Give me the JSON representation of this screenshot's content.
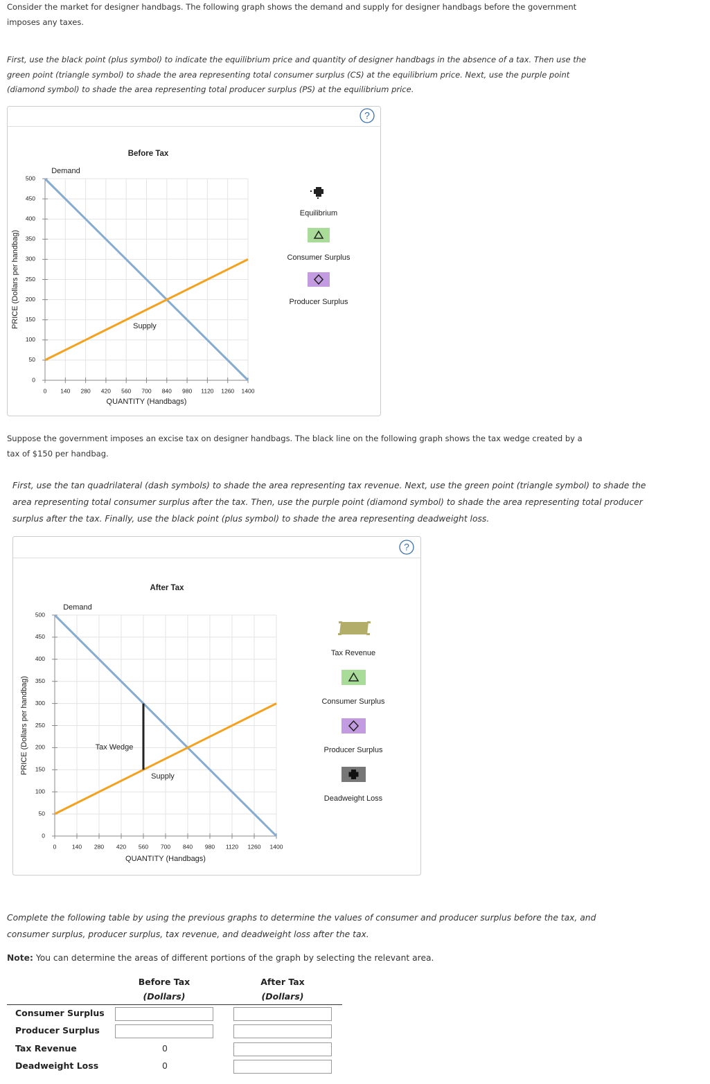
{
  "intro": {
    "text": "Consider the market for designer handbags. The following graph shows the demand and supply for designer handbags before the government imposes any taxes.",
    "instructions": "First, use the black point (plus symbol) to indicate the equilibrium price and quantity of designer handbags in the absence of a tax. Then use the green point (triangle symbol) to shade the area representing total consumer surplus (CS) at the equilibrium price. Next, use the purple point (diamond symbol) to shade the area representing total producer surplus (PS) at the equilibrium price."
  },
  "tax_section": {
    "text": "Suppose the government imposes an excise tax on designer handbags. The black line on the following graph shows the tax wedge created by a tax of $150 per handbag.",
    "instructions": "First, use the tan quadrilateral (dash symbols) to shade the area representing tax revenue. Next, use the green point (triangle symbol) to shade the area representing total consumer surplus after the tax. Then, use the purple point (diamond symbol) to shade the area representing total producer surplus after the tax. Finally, use the black point (plus symbol) to shade the area representing deadweight loss."
  },
  "chart_data": [
    {
      "type": "line",
      "title": "Before Tax",
      "x_label": "QUANTITY (Handbags)",
      "y_label": "PRICE (Dollars per handbag)",
      "xlim": [
        0,
        1400
      ],
      "ylim": [
        0,
        500
      ],
      "xticks": [
        0,
        140,
        280,
        420,
        560,
        700,
        840,
        980,
        1120,
        1260,
        1400
      ],
      "yticks": [
        0,
        50,
        100,
        150,
        200,
        250,
        300,
        350,
        400,
        450,
        500
      ],
      "grid": true,
      "series": [
        {
          "name": "Demand",
          "color": "#86abd0",
          "x": [
            0,
            1400
          ],
          "values": [
            500,
            0
          ]
        },
        {
          "name": "Supply",
          "color": "#f4a11e",
          "x": [
            0,
            1400
          ],
          "values": [
            50,
            300
          ]
        }
      ],
      "tools": [
        "Equilibrium",
        "Consumer Surplus",
        "Producer Surplus"
      ]
    },
    {
      "type": "line",
      "title": "After Tax",
      "x_label": "QUANTITY (Handbags)",
      "y_label": "PRICE (Dollars per handbag)",
      "xlim": [
        0,
        1400
      ],
      "ylim": [
        0,
        500
      ],
      "xticks": [
        0,
        140,
        280,
        420,
        560,
        700,
        840,
        980,
        1120,
        1260,
        1400
      ],
      "yticks": [
        0,
        50,
        100,
        150,
        200,
        250,
        300,
        350,
        400,
        450,
        500
      ],
      "grid": true,
      "series": [
        {
          "name": "Demand",
          "color": "#86abd0",
          "x": [
            0,
            1400
          ],
          "values": [
            500,
            0
          ]
        },
        {
          "name": "Supply",
          "color": "#f4a11e",
          "x": [
            0,
            1400
          ],
          "values": [
            50,
            300
          ]
        },
        {
          "name": "Tax Wedge",
          "color": "#222222",
          "x": [
            560,
            560
          ],
          "values": [
            150,
            300
          ]
        }
      ],
      "tools": [
        "Tax Revenue",
        "Consumer Surplus",
        "Producer Surplus",
        "Deadweight Loss"
      ]
    }
  ],
  "table_section": {
    "text": "Complete the following table by using the previous graphs to determine the values of consumer and producer surplus before the tax, and consumer surplus, producer surplus, tax revenue, and deadweight loss after the tax.",
    "note_label": "Note:",
    "note": "You can determine the areas of different portions of the graph by selecting the relevant area."
  },
  "table": {
    "columns": [
      {
        "title": "Before Tax",
        "unit": "(Dollars)"
      },
      {
        "title": "After Tax",
        "unit": "(Dollars)"
      }
    ],
    "rows": [
      {
        "label": "Consumer Surplus"
      },
      {
        "label": "Producer Surplus"
      },
      {
        "label": "Tax Revenue",
        "before": 0
      },
      {
        "label": "Deadweight Loss",
        "before": 0
      }
    ]
  }
}
